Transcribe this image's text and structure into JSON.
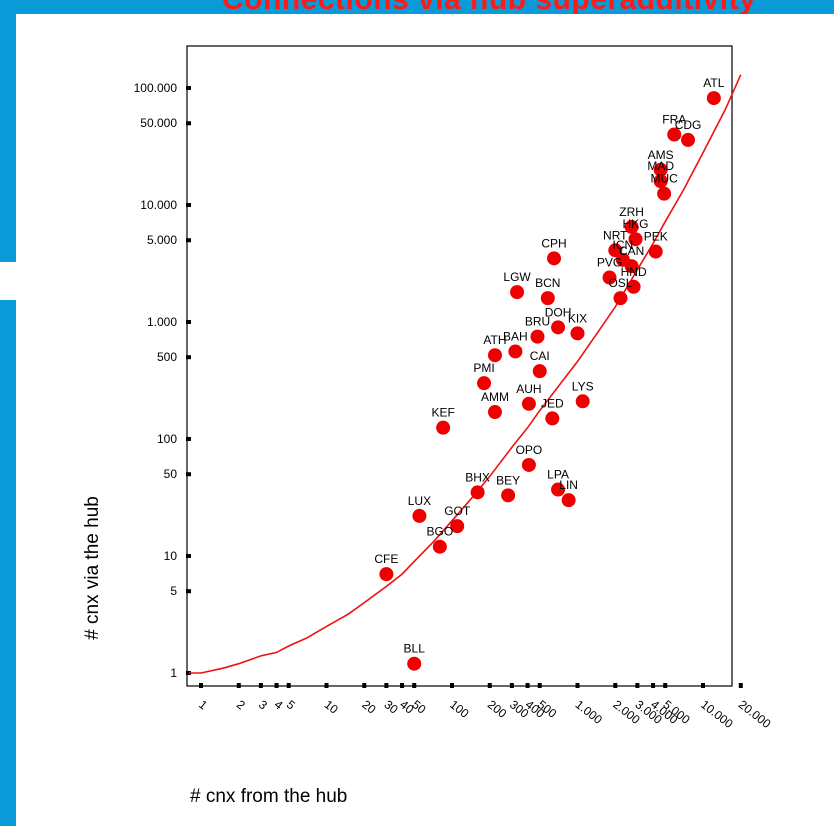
{
  "title": "Connections via hub superadditivity",
  "colors": {
    "accent": "#0a9ad8",
    "title": "#ff1a1a",
    "points": "#ee0000",
    "curve": "#ee1111",
    "axis": "#000000"
  },
  "chart_data": {
    "type": "scatter",
    "xlabel": "# cnx from the hub",
    "ylabel": "# cnx via the hub",
    "x_scale": "log",
    "y_scale": "log",
    "xlim": [
      0.8,
      30000
    ],
    "ylim": [
      0.8,
      180000
    ],
    "grid": false,
    "x_ticks": [
      {
        "value": 1,
        "label": "1"
      },
      {
        "value": 2,
        "label": "2"
      },
      {
        "value": 3,
        "label": "3"
      },
      {
        "value": 4,
        "label": "4"
      },
      {
        "value": 5,
        "label": "5"
      },
      {
        "value": 10,
        "label": "10"
      },
      {
        "value": 20,
        "label": "20"
      },
      {
        "value": 30,
        "label": "30"
      },
      {
        "value": 40,
        "label": "40"
      },
      {
        "value": 50,
        "label": "50"
      },
      {
        "value": 100,
        "label": "100"
      },
      {
        "value": 200,
        "label": "200"
      },
      {
        "value": 300,
        "label": "300"
      },
      {
        "value": 400,
        "label": "400"
      },
      {
        "value": 500,
        "label": "500"
      },
      {
        "value": 1000,
        "label": "1.000"
      },
      {
        "value": 2000,
        "label": "2.000"
      },
      {
        "value": 3000,
        "label": "3.000"
      },
      {
        "value": 4000,
        "label": "4.000"
      },
      {
        "value": 5000,
        "label": "5.000"
      },
      {
        "value": 10000,
        "label": "10.000"
      },
      {
        "value": 20000,
        "label": "20.000"
      }
    ],
    "y_ticks": [
      {
        "value": 1,
        "label": "1"
      },
      {
        "value": 5,
        "label": "5"
      },
      {
        "value": 10,
        "label": "10"
      },
      {
        "value": 50,
        "label": "50"
      },
      {
        "value": 100,
        "label": "100"
      },
      {
        "value": 500,
        "label": "500"
      },
      {
        "value": 1000,
        "label": "1.000"
      },
      {
        "value": 5000,
        "label": "5.000"
      },
      {
        "value": 10000,
        "label": "10.000"
      },
      {
        "value": 50000,
        "label": "50.000"
      },
      {
        "value": 100000,
        "label": "100.000"
      }
    ],
    "points": [
      {
        "label": "ATL",
        "x": 12200,
        "y": 82000
      },
      {
        "label": "FRA",
        "x": 5900,
        "y": 40000
      },
      {
        "label": "CDG",
        "x": 7600,
        "y": 36000
      },
      {
        "label": "AMS",
        "x": 4600,
        "y": 20000
      },
      {
        "label": "MAD",
        "x": 4600,
        "y": 16000
      },
      {
        "label": "MUC",
        "x": 4900,
        "y": 12500
      },
      {
        "label": "ZRH",
        "x": 2700,
        "y": 6500
      },
      {
        "label": "NRT",
        "x": 2000,
        "y": 4100
      },
      {
        "label": "HKG",
        "x": 2900,
        "y": 5100
      },
      {
        "label": "PEK",
        "x": 4200,
        "y": 4000
      },
      {
        "label": "ICN",
        "x": 2300,
        "y": 3400
      },
      {
        "label": "CAN",
        "x": 2700,
        "y": 3000
      },
      {
        "label": "CPH",
        "x": 650,
        "y": 3500
      },
      {
        "label": "PVG",
        "x": 1800,
        "y": 2400
      },
      {
        "label": "LGW",
        "x": 330,
        "y": 1800
      },
      {
        "label": "BCN",
        "x": 580,
        "y": 1600
      },
      {
        "label": "HND",
        "x": 2800,
        "y": 2000
      },
      {
        "label": "OSL",
        "x": 2200,
        "y": 1600
      },
      {
        "label": "DOH",
        "x": 700,
        "y": 900
      },
      {
        "label": "BRU",
        "x": 480,
        "y": 750
      },
      {
        "label": "KIX",
        "x": 1000,
        "y": 800
      },
      {
        "label": "ATH",
        "x": 220,
        "y": 520
      },
      {
        "label": "BAH",
        "x": 320,
        "y": 560
      },
      {
        "label": "PMI",
        "x": 180,
        "y": 300
      },
      {
        "label": "CAI",
        "x": 500,
        "y": 380
      },
      {
        "label": "AMM",
        "x": 220,
        "y": 170
      },
      {
        "label": "AUH",
        "x": 410,
        "y": 200
      },
      {
        "label": "LYS",
        "x": 1100,
        "y": 210
      },
      {
        "label": "JED",
        "x": 630,
        "y": 150
      },
      {
        "label": "KEF",
        "x": 85,
        "y": 125
      },
      {
        "label": "OPO",
        "x": 410,
        "y": 60
      },
      {
        "label": "BHX",
        "x": 160,
        "y": 35
      },
      {
        "label": "BEY",
        "x": 280,
        "y": 33
      },
      {
        "label": "LPA",
        "x": 700,
        "y": 37
      },
      {
        "label": "LIN",
        "x": 850,
        "y": 30
      },
      {
        "label": "LUX",
        "x": 55,
        "y": 22
      },
      {
        "label": "GOT",
        "x": 110,
        "y": 18
      },
      {
        "label": "BGO",
        "x": 80,
        "y": 12
      },
      {
        "label": "CFE",
        "x": 30,
        "y": 7
      },
      {
        "label": "BLL",
        "x": 50,
        "y": 1.2
      }
    ],
    "fit_curve": {
      "x": [
        0.8,
        1,
        1.5,
        2,
        3,
        4,
        5,
        7,
        10,
        15,
        20,
        30,
        40,
        50,
        70,
        100,
        150,
        200,
        300,
        400,
        500,
        700,
        1000,
        1500,
        2000,
        3000,
        4000,
        5000,
        7000,
        10000,
        15000,
        20000
      ],
      "y": [
        1.0,
        1.0,
        1.1,
        1.2,
        1.4,
        1.5,
        1.7,
        2.0,
        2.5,
        3.2,
        4.0,
        5.5,
        7.0,
        9.0,
        13,
        20,
        33,
        48,
        85,
        125,
        175,
        280,
        460,
        860,
        1350,
        2800,
        4700,
        7200,
        13500,
        28000,
        65000,
        130000
      ]
    }
  }
}
